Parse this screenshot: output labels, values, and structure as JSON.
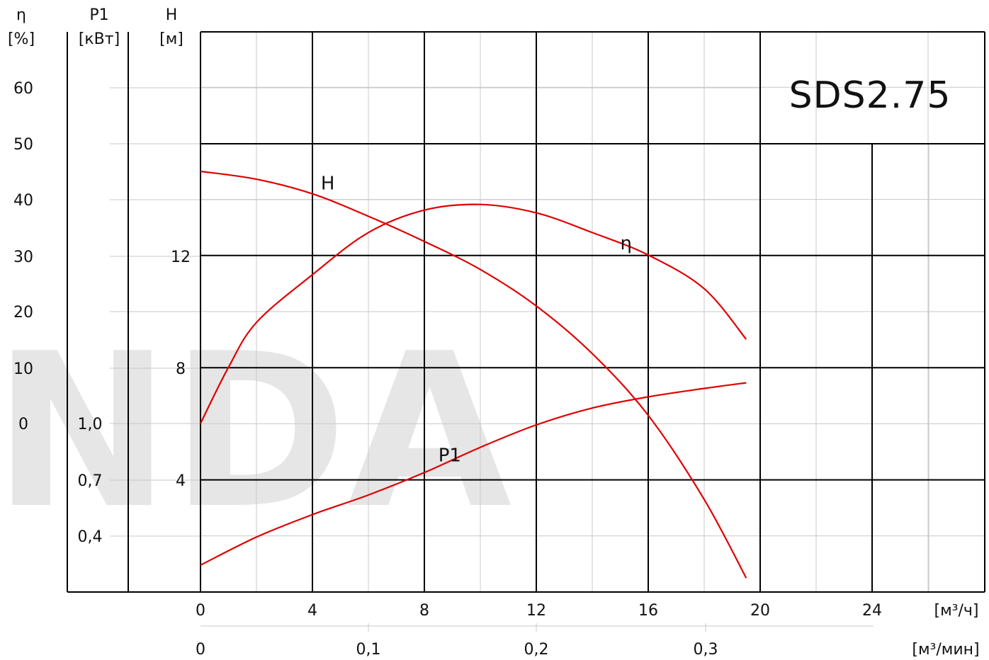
{
  "chart_data": {
    "type": "line",
    "title": "SDS2.75",
    "watermark": "NDA",
    "xaxis_primary": {
      "label": "[м³/ч]",
      "ticks": [
        "0",
        "4",
        "8",
        "12",
        "16",
        "20",
        "24"
      ],
      "range": [
        0,
        28
      ]
    },
    "xaxis_secondary": {
      "label": "[м³/мин]",
      "ticks": [
        "0",
        "0,1",
        "0,2",
        "0,3"
      ],
      "tick_values": [
        0,
        0.1,
        0.2,
        0.3
      ]
    },
    "yaxis_eta": {
      "symbol": "η",
      "unit": "[%]",
      "ticks": [
        "0",
        "10",
        "20",
        "30",
        "40",
        "50",
        "60"
      ],
      "range": [
        0,
        70
      ]
    },
    "yaxis_p1": {
      "symbol": "P1",
      "unit": "[кВт]",
      "ticks": [
        "0,4",
        "1,0",
        "0,7"
      ],
      "tick_values": [
        0.4,
        1.0,
        0.7
      ]
    },
    "yaxis_h": {
      "symbol": "H",
      "unit": "[м]",
      "ticks": [
        "4",
        "8",
        "12"
      ],
      "range": [
        0,
        20
      ]
    },
    "series": [
      {
        "name": "H",
        "axis": "H",
        "color": "#e00000",
        "x": [
          0,
          2,
          4,
          6,
          8,
          10,
          12,
          14,
          16,
          18,
          19.5
        ],
        "y": [
          15,
          14.72,
          14.2,
          13.4,
          12.5,
          11.5,
          10.2,
          8.5,
          6.3,
          3.3,
          0.5
        ]
      },
      {
        "name": "η",
        "axis": "eta",
        "color": "#e00000",
        "x": [
          0,
          1,
          2,
          4,
          6,
          8,
          10,
          12,
          14,
          16,
          18,
          19.5
        ],
        "y": [
          0,
          10,
          18,
          26.5,
          34,
          38,
          39,
          37.5,
          34,
          30,
          24,
          15
        ]
      },
      {
        "name": "P1",
        "axis": "P1",
        "color": "#e00000",
        "x": [
          0,
          2,
          4,
          6,
          8,
          10,
          12,
          14,
          16,
          18,
          19.5
        ],
        "y": [
          0.5,
          0.6,
          0.68,
          0.75,
          0.83,
          0.92,
          1.0,
          1.06,
          1.1,
          1.13,
          1.15
        ]
      }
    ],
    "curve_labels": [
      {
        "text": "H",
        "x": 4.3,
        "y": 14.35,
        "axis": "H"
      },
      {
        "text": "η",
        "x": 15.0,
        "y": 31.0,
        "axis": "eta"
      },
      {
        "text": "P1",
        "x": 8.5,
        "y": 0.87,
        "axis": "P1"
      }
    ],
    "grid": true
  }
}
